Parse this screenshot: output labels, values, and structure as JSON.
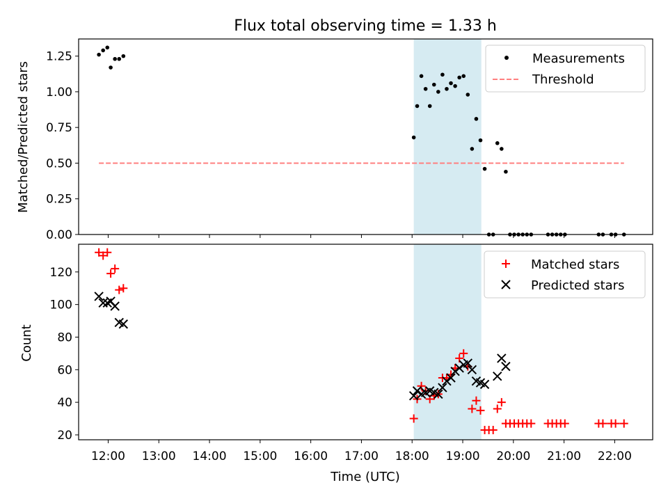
{
  "figure": {
    "title": "Flux total observing time = 1.33 h",
    "xlabel": "Time (UTC)"
  },
  "colors": {
    "highlight": "#add8e6",
    "measurement": "#000000",
    "threshold": "#ff7f7f",
    "matched": "#ff0000",
    "predicted": "#000000"
  },
  "chart_data": [
    {
      "type": "scatter",
      "ylabel": "Matched/Predicted stars",
      "xlim": [
        "11:25",
        "22:45"
      ],
      "ylim": [
        0,
        1.37
      ],
      "yticks": [
        0.0,
        0.25,
        0.5,
        0.75,
        1.0,
        1.25
      ],
      "ytick_labels": [
        "0.00",
        "0.25",
        "0.50",
        "0.75",
        "1.00",
        "1.25"
      ],
      "highlight_span": [
        "18:02",
        "19:22"
      ],
      "legend_position": "top-right",
      "series": [
        {
          "name": "Measurements",
          "marker": "dot",
          "points": [
            [
              "11:49",
              1.26
            ],
            [
              "11:54",
              1.29
            ],
            [
              "11:59",
              1.31
            ],
            [
              "12:03",
              1.17
            ],
            [
              "12:08",
              1.23
            ],
            [
              "12:13",
              1.23
            ],
            [
              "12:18",
              1.25
            ],
            [
              "18:02",
              0.68
            ],
            [
              "18:06",
              0.9
            ],
            [
              "18:11",
              1.11
            ],
            [
              "18:16",
              1.02
            ],
            [
              "18:21",
              0.9
            ],
            [
              "18:26",
              1.05
            ],
            [
              "18:31",
              1.0
            ],
            [
              "18:36",
              1.12
            ],
            [
              "18:41",
              1.02
            ],
            [
              "18:46",
              1.06
            ],
            [
              "18:51",
              1.04
            ],
            [
              "18:56",
              1.1
            ],
            [
              "19:01",
              1.11
            ],
            [
              "19:06",
              0.98
            ],
            [
              "19:11",
              0.6
            ],
            [
              "19:16",
              0.81
            ],
            [
              "19:21",
              0.66
            ],
            [
              "19:26",
              0.46
            ],
            [
              "19:31",
              0.0
            ],
            [
              "19:36",
              0.0
            ],
            [
              "19:41",
              0.64
            ],
            [
              "19:46",
              0.6
            ],
            [
              "19:51",
              0.44
            ],
            [
              "19:56",
              0.0
            ],
            [
              "20:01",
              0.0
            ],
            [
              "20:06",
              0.0
            ],
            [
              "20:11",
              0.0
            ],
            [
              "20:16",
              0.0
            ],
            [
              "20:21",
              0.0
            ],
            [
              "20:41",
              0.0
            ],
            [
              "20:46",
              0.0
            ],
            [
              "20:51",
              0.0
            ],
            [
              "20:56",
              0.0
            ],
            [
              "21:01",
              0.0
            ],
            [
              "21:41",
              0.0
            ],
            [
              "21:46",
              0.0
            ],
            [
              "21:56",
              0.0
            ],
            [
              "22:01",
              0.0
            ],
            [
              "22:11",
              0.0
            ]
          ]
        },
        {
          "name": "Threshold",
          "style": "dashed-line",
          "points": [
            [
              "11:49",
              0.5
            ],
            [
              "22:11",
              0.5
            ]
          ]
        }
      ]
    },
    {
      "type": "scatter",
      "ylabel": "Count",
      "xlim": [
        "11:25",
        "22:45"
      ],
      "ylim": [
        17,
        137
      ],
      "yticks": [
        20,
        40,
        60,
        80,
        100,
        120
      ],
      "xticks": [
        "12:00",
        "13:00",
        "14:00",
        "15:00",
        "16:00",
        "17:00",
        "18:00",
        "19:00",
        "20:00",
        "21:00",
        "22:00"
      ],
      "highlight_span": [
        "18:02",
        "19:22"
      ],
      "legend_position": "top-right",
      "series": [
        {
          "name": "Matched stars",
          "marker": "plus",
          "points": [
            [
              "11:49",
              132
            ],
            [
              "11:54",
              130
            ],
            [
              "11:59",
              132
            ],
            [
              "12:03",
              119
            ],
            [
              "12:08",
              122
            ],
            [
              "12:13",
              109
            ],
            [
              "12:18",
              110
            ],
            [
              "18:02",
              30
            ],
            [
              "18:06",
              42
            ],
            [
              "18:11",
              50
            ],
            [
              "18:16",
              47
            ],
            [
              "18:21",
              42
            ],
            [
              "18:26",
              44
            ],
            [
              "18:31",
              45
            ],
            [
              "18:36",
              55
            ],
            [
              "18:41",
              55
            ],
            [
              "18:46",
              57
            ],
            [
              "18:51",
              61
            ],
            [
              "18:56",
              67
            ],
            [
              "19:01",
              70
            ],
            [
              "19:06",
              62
            ],
            [
              "19:11",
              36
            ],
            [
              "19:16",
              41
            ],
            [
              "19:21",
              35
            ],
            [
              "19:26",
              23
            ],
            [
              "19:31",
              23
            ],
            [
              "19:36",
              23
            ],
            [
              "19:41",
              36
            ],
            [
              "19:46",
              40
            ],
            [
              "19:51",
              27
            ],
            [
              "19:56",
              27
            ],
            [
              "20:01",
              27
            ],
            [
              "20:06",
              27
            ],
            [
              "20:11",
              27
            ],
            [
              "20:16",
              27
            ],
            [
              "20:21",
              27
            ],
            [
              "20:41",
              27
            ],
            [
              "20:46",
              27
            ],
            [
              "20:51",
              27
            ],
            [
              "20:56",
              27
            ],
            [
              "21:01",
              27
            ],
            [
              "21:41",
              27
            ],
            [
              "21:46",
              27
            ],
            [
              "21:56",
              27
            ],
            [
              "22:01",
              27
            ],
            [
              "22:11",
              27
            ]
          ]
        },
        {
          "name": "Predicted stars",
          "marker": "x",
          "points": [
            [
              "11:49",
              105
            ],
            [
              "11:54",
              101
            ],
            [
              "11:59",
              101
            ],
            [
              "12:03",
              102
            ],
            [
              "12:08",
              99
            ],
            [
              "12:13",
              89
            ],
            [
              "12:18",
              88
            ],
            [
              "18:02",
              44
            ],
            [
              "18:06",
              47
            ],
            [
              "18:11",
              45
            ],
            [
              "18:16",
              46
            ],
            [
              "18:21",
              47
            ],
            [
              "18:26",
              46
            ],
            [
              "18:31",
              45
            ],
            [
              "18:36",
              49
            ],
            [
              "18:41",
              53
            ],
            [
              "18:46",
              55
            ],
            [
              "18:51",
              59
            ],
            [
              "18:56",
              61
            ],
            [
              "19:01",
              63
            ],
            [
              "19:06",
              64
            ],
            [
              "19:11",
              60
            ],
            [
              "19:16",
              53
            ],
            [
              "19:21",
              52
            ],
            [
              "19:26",
              51
            ],
            [
              "19:41",
              56
            ],
            [
              "19:46",
              67
            ],
            [
              "19:51",
              62
            ]
          ]
        }
      ]
    }
  ]
}
